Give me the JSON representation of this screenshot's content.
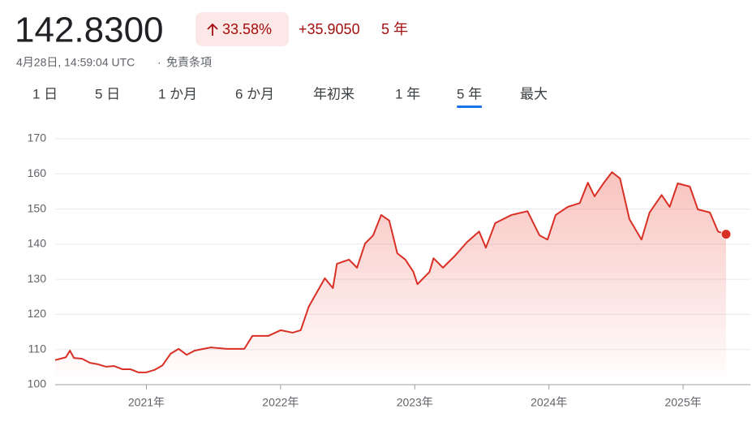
{
  "header": {
    "price": "142.8300",
    "change_pct": "33.58%",
    "change_abs": "+35.9050",
    "period": "5 年",
    "timestamp": "4月28日, 14:59:04 UTC",
    "disclaimer": "免責条項"
  },
  "tabs": {
    "items": [
      "1 日",
      "5 日",
      "1 か月",
      "6 か月",
      "年初来",
      "1 年",
      "5 年",
      "最大"
    ],
    "selected": 6
  },
  "chart_data": {
    "type": "line",
    "color": "#d93025",
    "x": [
      2020.32,
      2020.4,
      2020.43,
      2020.46,
      2020.52,
      2020.58,
      2020.64,
      2020.7,
      2020.76,
      2020.82,
      2020.88,
      2020.94,
      2021.0,
      2021.06,
      2021.12,
      2021.18,
      2021.24,
      2021.3,
      2021.36,
      2021.48,
      2021.6,
      2021.73,
      2021.79,
      2021.91,
      2022.0,
      2022.09,
      2022.15,
      2022.21,
      2022.33,
      2022.39,
      2022.42,
      2022.51,
      2022.57,
      2022.63,
      2022.69,
      2022.75,
      2022.81,
      2022.87,
      2022.93,
      2022.99,
      2023.02,
      2023.11,
      2023.14,
      2023.21,
      2023.3,
      2023.39,
      2023.48,
      2023.53,
      2023.6,
      2023.72,
      2023.84,
      2023.93,
      2023.99,
      2024.05,
      2024.14,
      2024.23,
      2024.29,
      2024.34,
      2024.41,
      2024.47,
      2024.53,
      2024.6,
      2024.69,
      2024.75,
      2024.84,
      2024.9,
      2024.96,
      2025.05,
      2025.11,
      2025.2,
      2025.26,
      2025.32
    ],
    "values": [
      107.0,
      107.8,
      109.7,
      107.6,
      107.4,
      106.2,
      105.8,
      105.1,
      105.3,
      104.4,
      104.4,
      103.5,
      103.5,
      104.2,
      105.5,
      108.8,
      110.2,
      108.5,
      109.7,
      110.6,
      110.2,
      110.2,
      113.9,
      113.9,
      115.5,
      114.8,
      115.5,
      122.2,
      130.3,
      127.5,
      134.4,
      135.6,
      133.3,
      140.2,
      142.5,
      148.3,
      146.7,
      137.4,
      135.6,
      132.1,
      128.6,
      132.1,
      136.0,
      133.3,
      136.7,
      140.6,
      143.6,
      139.0,
      146.0,
      148.3,
      149.4,
      142.5,
      141.3,
      148.3,
      150.6,
      151.7,
      157.5,
      153.6,
      157.5,
      160.5,
      158.7,
      147.1,
      141.3,
      149.0,
      154.0,
      150.6,
      157.3,
      156.4,
      149.9,
      149.0,
      143.6,
      142.83
    ],
    "xlim": [
      2020.32,
      2025.32
    ],
    "xticks": [
      {
        "value": 2021,
        "label": "2021年"
      },
      {
        "value": 2022,
        "label": "2022年"
      },
      {
        "value": 2023,
        "label": "2023年"
      },
      {
        "value": 2024,
        "label": "2024年"
      },
      {
        "value": 2025,
        "label": "2025年"
      }
    ],
    "ylim": [
      100,
      170
    ],
    "yticks": [
      100,
      110,
      120,
      130,
      140,
      150,
      160,
      170
    ],
    "grid": true
  }
}
